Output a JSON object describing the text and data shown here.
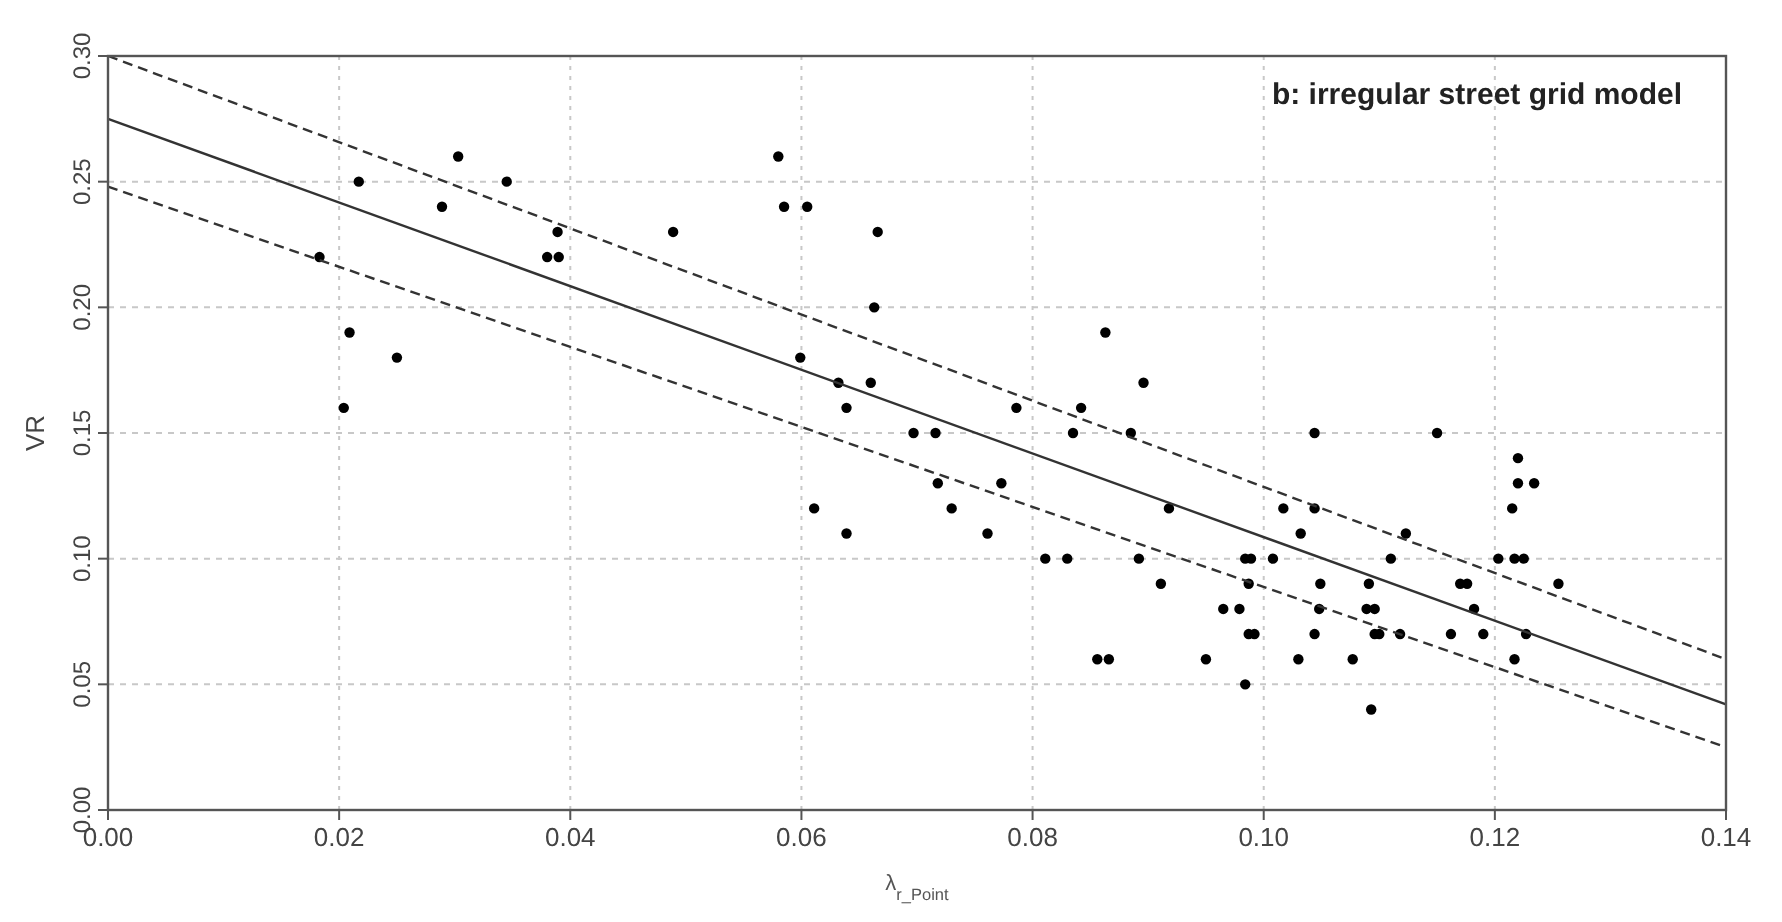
{
  "chart_data": {
    "type": "scatter",
    "xlabel": "λ$_{r_Point}$",
    "ylabel": "VR",
    "annotations": [
      "b: irregular street grid model"
    ],
    "xlim": [
      0,
      0.14
    ],
    "ylim": [
      0,
      0.3
    ],
    "xticks": [
      {
        "value": 0,
        "label": "0.00"
      },
      {
        "value": 0.02,
        "label": "0.02"
      },
      {
        "value": 0.04,
        "label": "0.04"
      },
      {
        "value": 0.06,
        "label": "0.06"
      },
      {
        "value": 0.08,
        "label": "0.08"
      },
      {
        "value": 0.1,
        "label": "0.10"
      },
      {
        "value": 0.12,
        "label": "0.12"
      },
      {
        "value": 0.14,
        "label": "0.14"
      }
    ],
    "yticks": [
      {
        "value": 0,
        "label": "0.00"
      },
      {
        "value": 0.05,
        "label": "0.05"
      },
      {
        "value": 0.1,
        "label": "0.10"
      },
      {
        "value": 0.15,
        "label": "0.15"
      },
      {
        "value": 0.2,
        "label": "0.20"
      },
      {
        "value": 0.25,
        "label": "0.25"
      },
      {
        "value": 0.3,
        "label": "0.30"
      }
    ],
    "grid": true,
    "marker": "circle",
    "series": [
      {
        "color": "#000000",
        "x": [
          0.0183,
          0.0217,
          0.0303,
          0.0289,
          0.0345,
          0.038,
          0.039,
          0.0389,
          0.0209,
          0.0204,
          0.025,
          0.0489,
          0.058,
          0.0585,
          0.0605,
          0.0666,
          0.0663,
          0.0599,
          0.0632,
          0.066,
          0.0639,
          0.0697,
          0.0716,
          0.0786,
          0.0842,
          0.0835,
          0.0885,
          0.0863,
          0.0896,
          0.0718,
          0.0773,
          0.0611,
          0.073,
          0.0639,
          0.0761,
          0.0811,
          0.083,
          0.0892,
          0.0856,
          0.0866,
          0.1044,
          0.115,
          0.122,
          0.122,
          0.1234,
          0.1215,
          0.0918,
          0.1017,
          0.1044,
          0.1032,
          0.1123,
          0.0984,
          0.0989,
          0.1008,
          0.111,
          0.1203,
          0.1217,
          0.1225,
          0.0911,
          0.0987,
          0.1049,
          0.1091,
          0.117,
          0.1176,
          0.1255,
          0.0965,
          0.0979,
          0.1048,
          0.1089,
          0.1096,
          0.1182,
          0.0987,
          0.0992,
          0.1044,
          0.1096,
          0.11,
          0.1118,
          0.1162,
          0.119,
          0.1227,
          0.095,
          0.103,
          0.1077,
          0.1217,
          0.0984,
          0.1093
        ],
        "values": [
          0.22,
          0.25,
          0.26,
          0.24,
          0.25,
          0.22,
          0.22,
          0.23,
          0.19,
          0.16,
          0.18,
          0.23,
          0.26,
          0.24,
          0.24,
          0.23,
          0.2,
          0.18,
          0.17,
          0.17,
          0.16,
          0.15,
          0.15,
          0.16,
          0.16,
          0.15,
          0.15,
          0.19,
          0.17,
          0.13,
          0.13,
          0.12,
          0.12,
          0.11,
          0.11,
          0.1,
          0.1,
          0.1,
          0.06,
          0.06,
          0.15,
          0.15,
          0.14,
          0.13,
          0.13,
          0.12,
          0.12,
          0.12,
          0.12,
          0.11,
          0.11,
          0.1,
          0.1,
          0.1,
          0.1,
          0.1,
          0.1,
          0.1,
          0.09,
          0.09,
          0.09,
          0.09,
          0.09,
          0.09,
          0.09,
          0.08,
          0.08,
          0.08,
          0.08,
          0.08,
          0.08,
          0.07,
          0.07,
          0.07,
          0.07,
          0.07,
          0.07,
          0.07,
          0.07,
          0.07,
          0.06,
          0.06,
          0.06,
          0.06,
          0.05,
          0.04
        ]
      },
      {
        "type": "line",
        "color": "#333333",
        "line_style": "solid",
        "marker": "none",
        "x": [
          0,
          0.14
        ],
        "values": [
          0.275,
          0.042
        ]
      },
      {
        "type": "line",
        "color": "#333333",
        "line_style": "dashed",
        "marker": "none",
        "x": [
          0,
          0.14
        ],
        "values": [
          0.3,
          0.06
        ]
      },
      {
        "type": "line",
        "color": "#333333",
        "line_style": "dashed",
        "marker": "none",
        "x": [
          0,
          0.14
        ],
        "values": [
          0.248,
          0.025
        ]
      }
    ]
  }
}
